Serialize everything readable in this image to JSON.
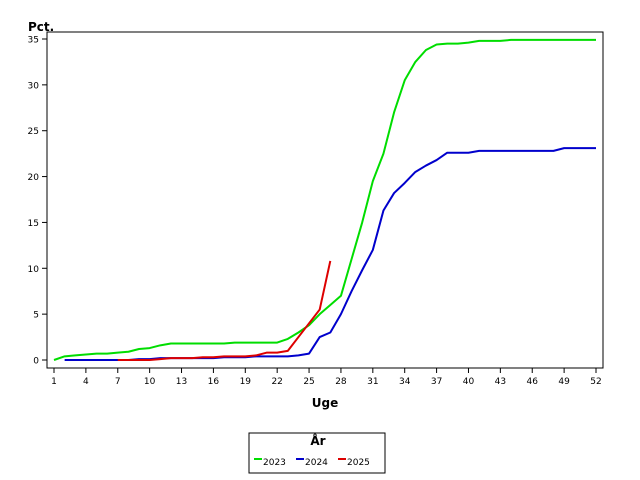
{
  "chart_data": {
    "type": "line",
    "ylabel": "Pct.",
    "xlabel": "Uge",
    "legend_title": "År",
    "legend_position": "bottom",
    "grid": false,
    "xlim": [
      1,
      52
    ],
    "ylim": [
      0,
      35
    ],
    "x_ticks": [
      1,
      4,
      7,
      10,
      13,
      16,
      19,
      22,
      25,
      28,
      31,
      34,
      37,
      40,
      43,
      46,
      49,
      52
    ],
    "y_ticks": [
      0,
      5,
      10,
      15,
      20,
      25,
      30,
      35
    ],
    "series": [
      {
        "name": "2023",
        "color": "#00dd00",
        "points": [
          [
            1,
            0
          ],
          [
            2,
            0.4
          ],
          [
            3,
            0.5
          ],
          [
            4,
            0.6
          ],
          [
            5,
            0.7
          ],
          [
            6,
            0.7
          ],
          [
            7,
            0.8
          ],
          [
            8,
            0.9
          ],
          [
            9,
            1.2
          ],
          [
            10,
            1.3
          ],
          [
            11,
            1.6
          ],
          [
            12,
            1.8
          ],
          [
            13,
            1.8
          ],
          [
            14,
            1.8
          ],
          [
            15,
            1.8
          ],
          [
            16,
            1.8
          ],
          [
            17,
            1.8
          ],
          [
            18,
            1.9
          ],
          [
            19,
            1.9
          ],
          [
            20,
            1.9
          ],
          [
            21,
            1.9
          ],
          [
            22,
            1.9
          ],
          [
            23,
            2.3
          ],
          [
            24,
            3.0
          ],
          [
            25,
            3.8
          ],
          [
            26,
            5.0
          ],
          [
            27,
            6.0
          ],
          [
            28,
            7.0
          ],
          [
            29,
            11.0
          ],
          [
            30,
            15.0
          ],
          [
            31,
            19.5
          ],
          [
            32,
            22.5
          ],
          [
            33,
            27.0
          ],
          [
            34,
            30.5
          ],
          [
            35,
            32.5
          ],
          [
            36,
            33.8
          ],
          [
            37,
            34.4
          ],
          [
            38,
            34.5
          ],
          [
            39,
            34.5
          ],
          [
            40,
            34.6
          ],
          [
            41,
            34.8
          ],
          [
            42,
            34.8
          ],
          [
            43,
            34.8
          ],
          [
            44,
            34.9
          ],
          [
            45,
            34.9
          ],
          [
            46,
            34.9
          ],
          [
            47,
            34.9
          ],
          [
            48,
            34.9
          ],
          [
            49,
            34.9
          ],
          [
            50,
            34.9
          ],
          [
            51,
            34.9
          ],
          [
            52,
            34.9
          ]
        ]
      },
      {
        "name": "2024",
        "color": "#0000cc",
        "points": [
          [
            2,
            0
          ],
          [
            3,
            0
          ],
          [
            4,
            0
          ],
          [
            5,
            0
          ],
          [
            6,
            0
          ],
          [
            7,
            0
          ],
          [
            8,
            0
          ],
          [
            9,
            0.1
          ],
          [
            10,
            0.1
          ],
          [
            11,
            0.2
          ],
          [
            12,
            0.2
          ],
          [
            13,
            0.2
          ],
          [
            14,
            0.2
          ],
          [
            15,
            0.2
          ],
          [
            16,
            0.2
          ],
          [
            17,
            0.3
          ],
          [
            18,
            0.3
          ],
          [
            19,
            0.3
          ],
          [
            20,
            0.4
          ],
          [
            21,
            0.4
          ],
          [
            22,
            0.4
          ],
          [
            23,
            0.4
          ],
          [
            24,
            0.5
          ],
          [
            25,
            0.7
          ],
          [
            26,
            2.5
          ],
          [
            27,
            3.0
          ],
          [
            28,
            5.0
          ],
          [
            29,
            7.5
          ],
          [
            30,
            9.8
          ],
          [
            31,
            12.0
          ],
          [
            32,
            16.3
          ],
          [
            33,
            18.2
          ],
          [
            34,
            19.3
          ],
          [
            35,
            20.5
          ],
          [
            36,
            21.2
          ],
          [
            37,
            21.8
          ],
          [
            38,
            22.6
          ],
          [
            39,
            22.6
          ],
          [
            40,
            22.6
          ],
          [
            41,
            22.8
          ],
          [
            42,
            22.8
          ],
          [
            43,
            22.8
          ],
          [
            44,
            22.8
          ],
          [
            45,
            22.8
          ],
          [
            46,
            22.8
          ],
          [
            47,
            22.8
          ],
          [
            48,
            22.8
          ],
          [
            49,
            23.1
          ],
          [
            50,
            23.1
          ],
          [
            51,
            23.1
          ],
          [
            52,
            23.1
          ]
        ]
      },
      {
        "name": "2025",
        "color": "#dd0000",
        "points": [
          [
            7,
            0
          ],
          [
            8,
            0
          ],
          [
            9,
            0
          ],
          [
            10,
            0
          ],
          [
            11,
            0.1
          ],
          [
            12,
            0.2
          ],
          [
            13,
            0.2
          ],
          [
            14,
            0.2
          ],
          [
            15,
            0.3
          ],
          [
            16,
            0.3
          ],
          [
            17,
            0.4
          ],
          [
            18,
            0.4
          ],
          [
            19,
            0.4
          ],
          [
            20,
            0.5
          ],
          [
            21,
            0.8
          ],
          [
            22,
            0.8
          ],
          [
            23,
            1.0
          ],
          [
            24,
            2.5
          ],
          [
            25,
            4.0
          ],
          [
            26,
            5.5
          ],
          [
            27,
            10.8
          ]
        ]
      }
    ]
  }
}
